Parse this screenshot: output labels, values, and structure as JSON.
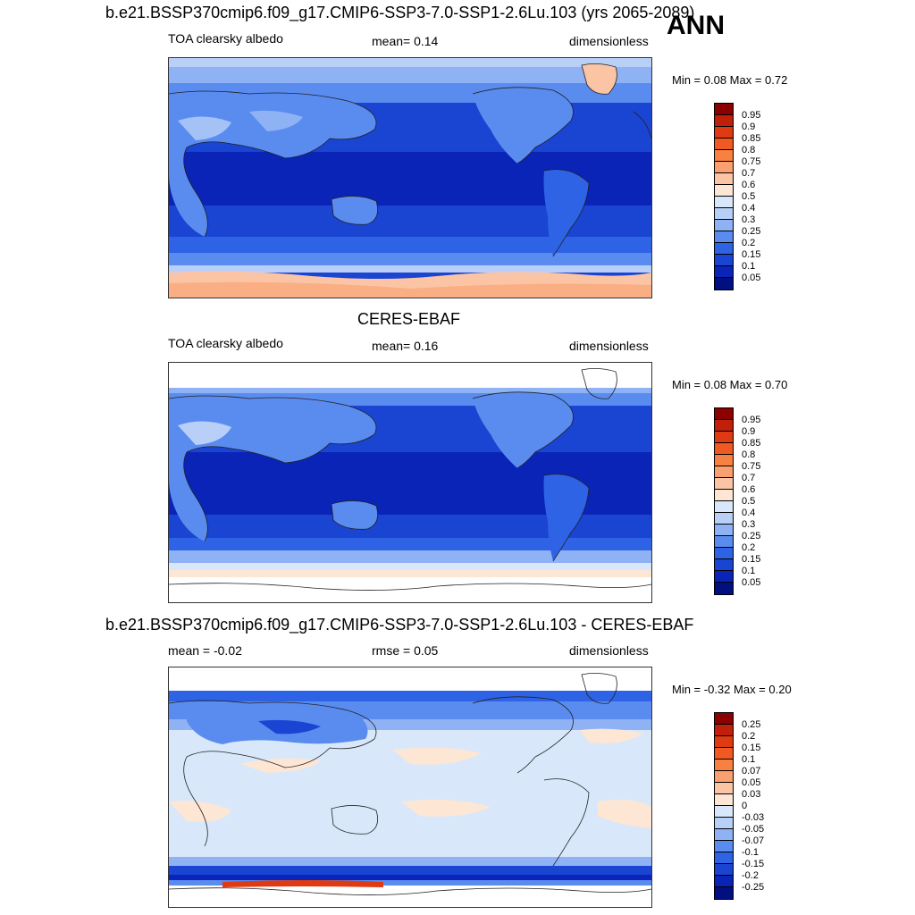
{
  "figure_label": "ANN",
  "panels": [
    {
      "title": "b.e21.BSSP370cmip6.f09_g17.CMIP6-SSP3-7.0-SSP1-2.6Lu.103 (yrs 2065-2089)",
      "left_label": "TOA clearsky albedo",
      "center_label": "mean=   0.14",
      "right_label": "dimensionless",
      "minmax": "Min =   0.08 Max =   0.72",
      "colorbar_labels": [
        "0.95",
        "0.9",
        "0.85",
        "0.8",
        "0.75",
        "0.7",
        "0.6",
        "0.5",
        "0.4",
        "0.3",
        "0.25",
        "0.2",
        "0.15",
        "0.1",
        "0.05"
      ],
      "colors": [
        "#8b0000",
        "#c0200a",
        "#e03a12",
        "#f05a22",
        "#f88040",
        "#faa070",
        "#fbc4a4",
        "#fde6d4",
        "#d8e8fa",
        "#b8d0f8",
        "#8fb2f4",
        "#5a8cf0",
        "#2e63e6",
        "#1a44d2",
        "#0a24b8",
        "#001080"
      ]
    },
    {
      "title": "CERES-EBAF",
      "left_label": "TOA clearsky albedo",
      "center_label": "mean=   0.16",
      "right_label": "dimensionless",
      "minmax": "Min =   0.08 Max =   0.70",
      "colorbar_labels": [
        "0.95",
        "0.9",
        "0.85",
        "0.8",
        "0.75",
        "0.7",
        "0.6",
        "0.5",
        "0.4",
        "0.3",
        "0.25",
        "0.2",
        "0.15",
        "0.1",
        "0.05"
      ],
      "colors": [
        "#8b0000",
        "#c0200a",
        "#e03a12",
        "#f05a22",
        "#f88040",
        "#faa070",
        "#fbc4a4",
        "#fde6d4",
        "#d8e8fa",
        "#b8d0f8",
        "#8fb2f4",
        "#5a8cf0",
        "#2e63e6",
        "#1a44d2",
        "#0a24b8",
        "#001080"
      ]
    },
    {
      "title": "b.e21.BSSP370cmip6.f09_g17.CMIP6-SSP3-7.0-SSP1-2.6Lu.103 - CERES-EBAF",
      "left_label": "mean =  -0.02",
      "center_label": "rmse =   0.05",
      "right_label": "dimensionless",
      "minmax": "Min =  -0.32 Max =   0.20",
      "colorbar_labels": [
        "0.25",
        "0.2",
        "0.15",
        "0.1",
        "0.07",
        "0.05",
        "0.03",
        "0",
        "-0.03",
        "-0.05",
        "-0.07",
        "-0.1",
        "-0.15",
        "-0.2",
        "-0.25"
      ],
      "colors": [
        "#8b0000",
        "#c0200a",
        "#e03a12",
        "#f05a22",
        "#f88040",
        "#faa070",
        "#fbc4a4",
        "#fde6d4",
        "#d8e8fa",
        "#b8d0f8",
        "#8fb2f4",
        "#5a8cf0",
        "#2e63e6",
        "#1a44d2",
        "#0a24b8",
        "#001080"
      ]
    }
  ]
}
